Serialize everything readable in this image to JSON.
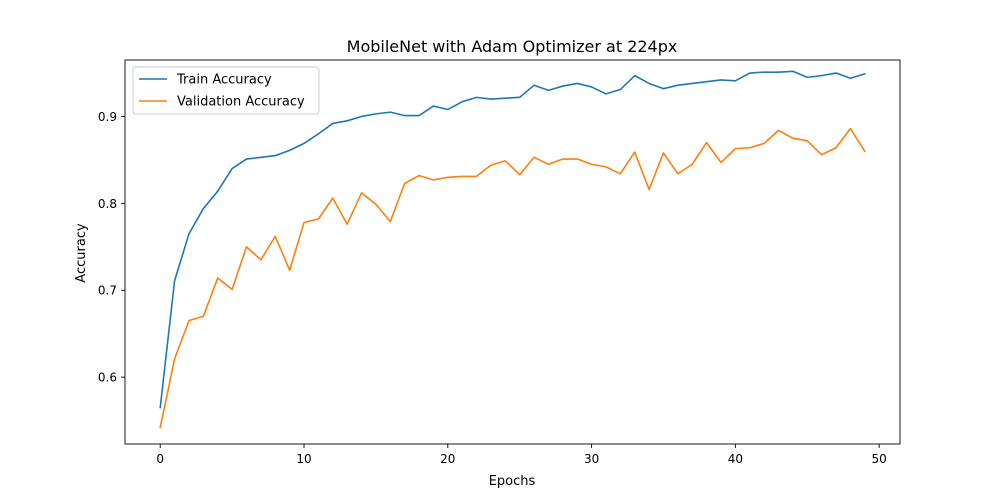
{
  "chart_data": {
    "type": "line",
    "title": "MobileNet with Adam Optimizer at 224px",
    "xlabel": "Epochs",
    "ylabel": "Accuracy",
    "xlim": [
      -2.45,
      51.45
    ],
    "ylim": [
      0.523,
      0.965
    ],
    "xticks": [
      0,
      10,
      20,
      30,
      40,
      50
    ],
    "yticks": [
      0.6,
      0.7,
      0.8,
      0.9
    ],
    "xtick_labels": [
      "0",
      "10",
      "20",
      "30",
      "40",
      "50"
    ],
    "ytick_labels": [
      "0.6",
      "0.7",
      "0.8",
      "0.9"
    ],
    "grid": false,
    "legend_position": "upper-left",
    "x": [
      0,
      1,
      2,
      3,
      4,
      5,
      6,
      7,
      8,
      9,
      10,
      11,
      12,
      13,
      14,
      15,
      16,
      17,
      18,
      19,
      20,
      21,
      22,
      23,
      24,
      25,
      26,
      27,
      28,
      29,
      30,
      31,
      32,
      33,
      34,
      35,
      36,
      37,
      38,
      39,
      40,
      41,
      42,
      43,
      44,
      45,
      46,
      47,
      48,
      49
    ],
    "series": [
      {
        "name": "Train Accuracy",
        "color": "#1f77b4",
        "values": [
          0.565,
          0.711,
          0.765,
          0.794,
          0.814,
          0.84,
          0.851,
          0.853,
          0.855,
          0.861,
          0.869,
          0.88,
          0.892,
          0.895,
          0.9,
          0.903,
          0.905,
          0.901,
          0.901,
          0.912,
          0.908,
          0.917,
          0.922,
          0.92,
          0.921,
          0.922,
          0.936,
          0.93,
          0.935,
          0.938,
          0.934,
          0.926,
          0.931,
          0.947,
          0.938,
          0.932,
          0.936,
          0.938,
          0.94,
          0.942,
          0.941,
          0.95,
          0.951,
          0.951,
          0.952,
          0.945,
          0.947,
          0.95,
          0.944,
          0.949
        ]
      },
      {
        "name": "Validation Accuracy",
        "color": "#ff7f0e",
        "values": [
          0.542,
          0.621,
          0.665,
          0.67,
          0.714,
          0.701,
          0.75,
          0.735,
          0.762,
          0.723,
          0.778,
          0.782,
          0.806,
          0.776,
          0.812,
          0.799,
          0.779,
          0.823,
          0.832,
          0.827,
          0.83,
          0.831,
          0.831,
          0.844,
          0.849,
          0.833,
          0.853,
          0.845,
          0.851,
          0.851,
          0.845,
          0.842,
          0.834,
          0.859,
          0.816,
          0.858,
          0.834,
          0.845,
          0.87,
          0.847,
          0.863,
          0.864,
          0.869,
          0.884,
          0.875,
          0.872,
          0.856,
          0.864,
          0.886,
          0.86
        ]
      }
    ]
  }
}
